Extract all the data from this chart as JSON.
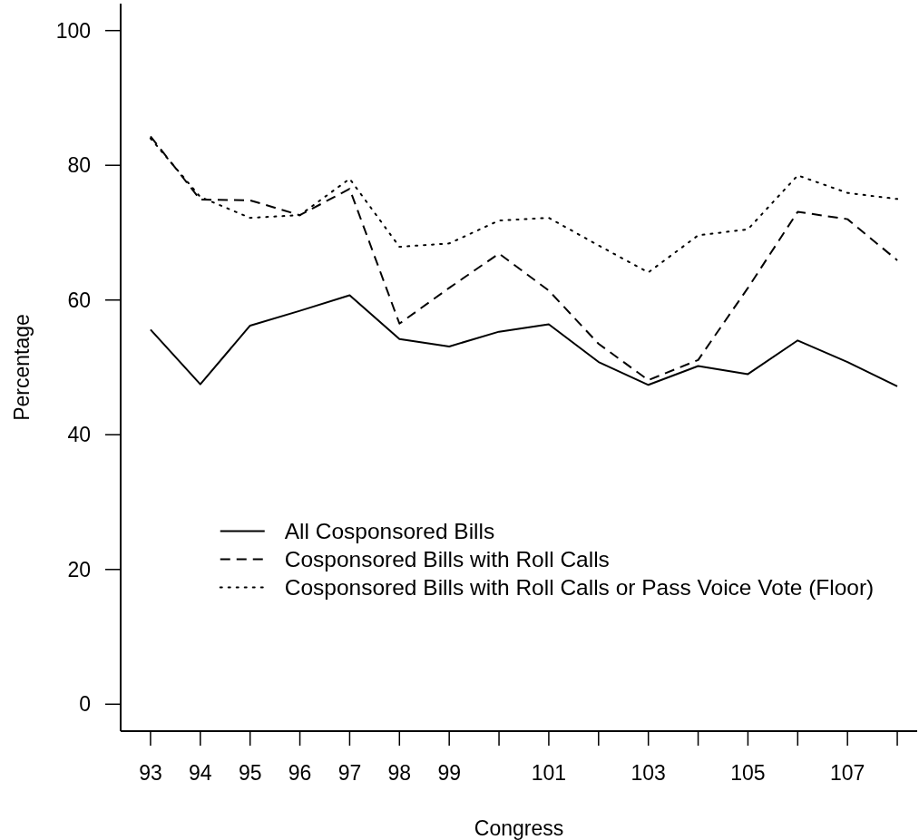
{
  "chart_data": {
    "type": "line",
    "xlabel": "Congress",
    "ylabel": "Percentage",
    "x": [
      93,
      94,
      95,
      96,
      97,
      98,
      99,
      100,
      101,
      102,
      103,
      104,
      105,
      106,
      107,
      108
    ],
    "xlim": [
      92.4,
      108.4
    ],
    "xticks": [
      93,
      94,
      95,
      96,
      97,
      98,
      99,
      {
        "value": 100,
        "label": null
      },
      101,
      {
        "value": 102,
        "label": null
      },
      103,
      {
        "value": 104,
        "label": null
      },
      105,
      {
        "value": 106,
        "label": null
      },
      107,
      {
        "value": 108,
        "label": null
      }
    ],
    "ylim": [
      -4,
      104
    ],
    "yticks": [
      0,
      20,
      40,
      60,
      80,
      100
    ],
    "legend": "bottom",
    "series": [
      {
        "name": "All Cosponsored Bills",
        "color": "#000000",
        "line_style": "solid",
        "values": [
          55.6,
          47.5,
          56.2,
          58.4,
          60.7,
          54.2,
          53.1,
          55.3,
          56.4,
          50.8,
          47.4,
          50.2,
          49.0,
          54.0,
          50.8,
          47.2
        ]
      },
      {
        "name": "Cosponsored Bills with Roll Calls",
        "color": "#000000",
        "line_style": "dashed",
        "values": [
          84.3,
          74.9,
          74.8,
          72.6,
          76.5,
          56.5,
          61.8,
          66.9,
          61.4,
          53.5,
          48.1,
          51.1,
          61.8,
          73.1,
          72.0,
          65.9
        ]
      },
      {
        "name": "Cosponsored Bills with Roll Calls or Pass Voice Vote (Floor)",
        "color": "#000000",
        "line_style": "dotted",
        "values": [
          84.0,
          75.3,
          72.2,
          72.6,
          78.0,
          67.9,
          68.4,
          71.8,
          72.2,
          68.1,
          64.1,
          69.6,
          70.5,
          78.5,
          75.9,
          75.0
        ]
      }
    ]
  }
}
